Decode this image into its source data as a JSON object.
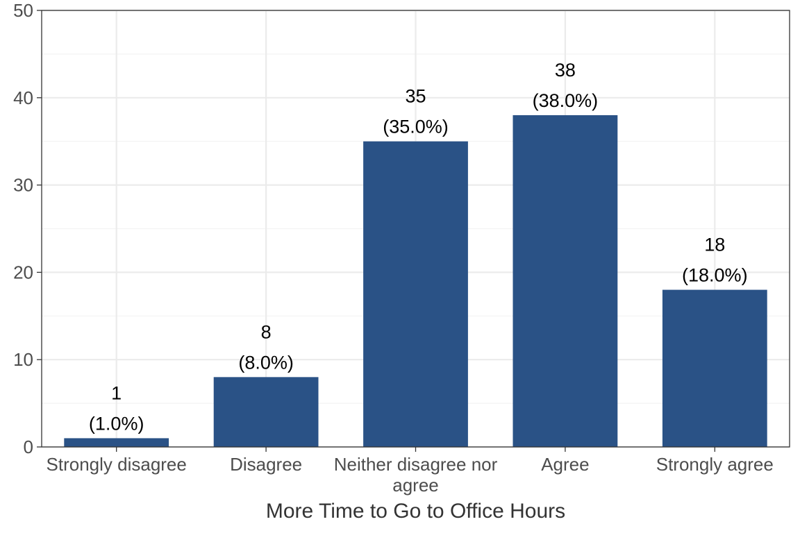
{
  "chart_data": {
    "type": "bar",
    "categories": [
      [
        "Strongly disagree"
      ],
      [
        "Disagree"
      ],
      [
        "Neither disagree nor",
        "agree"
      ],
      [
        "Agree"
      ],
      [
        "Strongly agree"
      ]
    ],
    "values": [
      1,
      8,
      35,
      38,
      18
    ],
    "data_labels": [
      "(1.0%)",
      "(8.0%)",
      "(35.0%)",
      "(38.0%)",
      "(18.0%)"
    ],
    "title": "",
    "xlabel": "More Time to Go to Office Hours",
    "ylabel": "",
    "ylim": [
      0,
      50
    ],
    "yticks": [
      0,
      10,
      20,
      30,
      40,
      50
    ],
    "grid": true,
    "legend": "none",
    "colors": {
      "bar": "#2a5286",
      "grid_major": "#ebebeb",
      "grid_minor": "#f3f3f3",
      "panel_border": "#333333"
    }
  }
}
